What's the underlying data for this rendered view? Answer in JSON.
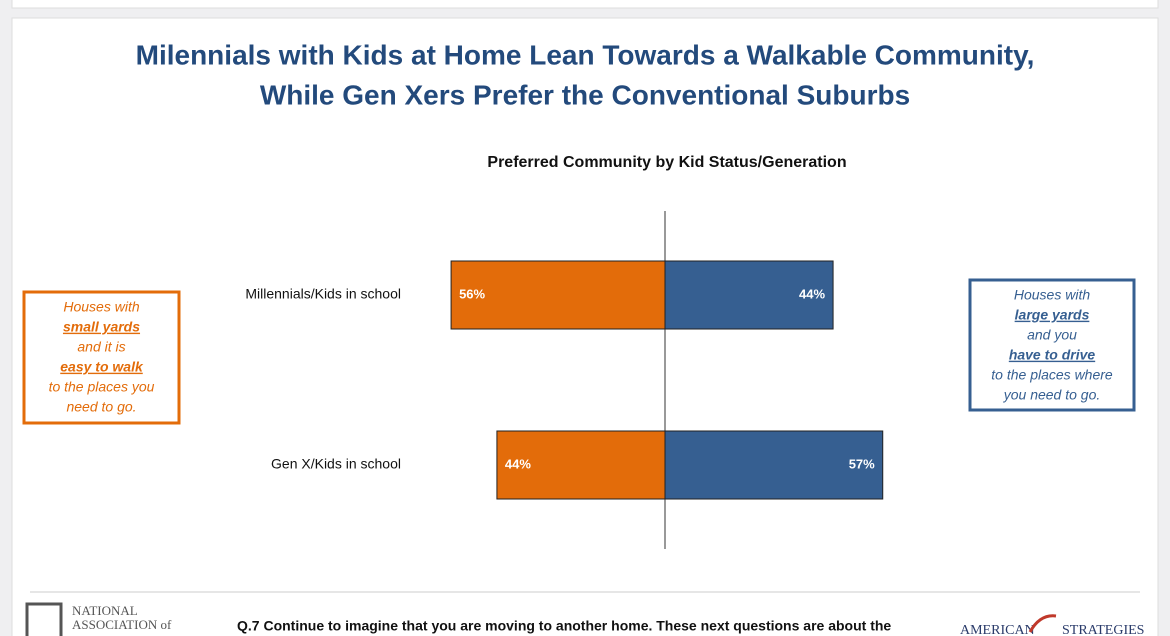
{
  "chart_data": {
    "type": "diverging-bar",
    "title": [
      "Milennials with Kids at Home Lean Towards a Walkable Community,",
      "While Gen Xers Prefer the Conventional Suburbs"
    ],
    "subtitle": "Preferred Community by Kid Status/Generation",
    "categories": [
      "Millennials/Kids in school",
      "Gen X/Kids in school"
    ],
    "series": [
      {
        "color": "#e36c0a",
        "side": "left",
        "values": [
          56,
          44
        ],
        "value_labels": [
          "56%",
          "44%"
        ]
      },
      {
        "color": "#365f91",
        "side": "right",
        "values": [
          44,
          57
        ],
        "value_labels": [
          "44%",
          "57%"
        ]
      }
    ],
    "annotations": [
      {
        "color": "#e36c0a",
        "side": "left",
        "lines": [
          {
            "text": "Houses with",
            "emphasis": false
          },
          {
            "text": "small yards",
            "emphasis": true
          },
          {
            "text": "and it is",
            "emphasis": false
          },
          {
            "text": "easy to walk",
            "emphasis": true
          },
          {
            "text": "to the places you",
            "emphasis": false
          },
          {
            "text": "need to go.",
            "emphasis": false
          }
        ]
      },
      {
        "color": "#365f91",
        "side": "right",
        "lines": [
          {
            "text": "Houses with",
            "emphasis": false
          },
          {
            "text": "large yards",
            "emphasis": true
          },
          {
            "text": "and you",
            "emphasis": false
          },
          {
            "text": "have to drive",
            "emphasis": true
          },
          {
            "text": "to the places where",
            "emphasis": false
          },
          {
            "text": "you need to go.",
            "emphasis": false
          }
        ]
      }
    ],
    "footer": {
      "logo_left": [
        "NATIONAL",
        "ASSOCIATION of"
      ],
      "question": "Q.7 Continue to imagine that you are moving to another home. These next questions are about the",
      "logo_right": [
        "AMERICAN",
        "STRATEGIES"
      ]
    }
  }
}
